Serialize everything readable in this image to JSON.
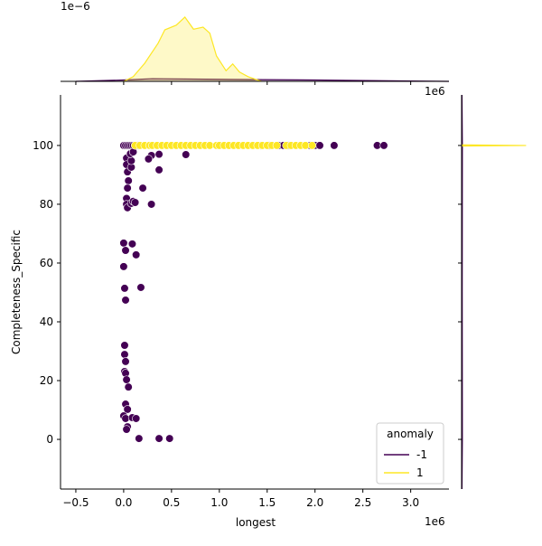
{
  "chart_data": {
    "type": "scatter",
    "xlabel": "longest",
    "ylabel": "Completeness_Specific",
    "x_offset_label": "1e6",
    "top_x_offset_label": "1e6",
    "top_y_offset_label": "1e−6",
    "xlim": [
      -0.66,
      3.4
    ],
    "ylim": [
      -16.9,
      117.2
    ],
    "xticks": [
      {
        "value": -0.5,
        "label": "−0.5"
      },
      {
        "value": 0.0,
        "label": "0.0"
      },
      0.5,
      {
        "value": 1.0,
        "label": "1.0"
      },
      1.5,
      {
        "value": 2.0,
        "label": "2.0"
      },
      2.5,
      {
        "value": 3.0,
        "label": "3.0"
      }
    ],
    "yticks": [
      0,
      20,
      40,
      60,
      80,
      100
    ],
    "legend_title": "anomaly",
    "legend_position": "lower right",
    "series": [
      {
        "name": "-1",
        "color": "#440154",
        "x": [
          0.0,
          0.02,
          0.04,
          0.06,
          0.08,
          0.1,
          0.12,
          0.15,
          1.44,
          1.52,
          1.62,
          1.67,
          1.72,
          1.95,
          2.0,
          2.05,
          2.2,
          2.65,
          2.72,
          0.03,
          0.03,
          0.04,
          0.05,
          0.04,
          0.03,
          0.03,
          0.04,
          0.08,
          0.1,
          0.08,
          0.08,
          0.07,
          0.1,
          0.37,
          0.37,
          0.29,
          0.26,
          0.65,
          0.2,
          0.29,
          0.12,
          0.09,
          0.0,
          0.13,
          0.02,
          0.0,
          0.01,
          0.18,
          0.02,
          0.01,
          0.01,
          0.02,
          0.01,
          0.02,
          0.03,
          0.05,
          0.02,
          0.04,
          0.0,
          0.02,
          0.09,
          0.13,
          0.04,
          0.03,
          0.16,
          0.37,
          0.48
        ],
        "values": [
          100,
          100,
          100,
          100,
          100,
          100,
          100,
          100,
          100,
          100,
          100,
          100,
          100,
          100,
          100,
          100,
          100,
          100,
          100,
          95.7,
          93.5,
          91,
          88,
          85.5,
          82,
          80,
          78.8,
          80.3,
          81,
          92.6,
          94.8,
          97.2,
          97.8,
          91.7,
          97,
          96.6,
          95.4,
          96.9,
          85.5,
          80,
          80.6,
          66.5,
          66.8,
          62.8,
          64.3,
          58.8,
          51.4,
          51.7,
          47.4,
          32,
          28.9,
          26.5,
          23.1,
          22.5,
          20.3,
          17.8,
          12,
          10.2,
          8,
          7.1,
          7.4,
          7.1,
          4.3,
          3.4,
          0.3,
          0.3,
          0.3
        ]
      },
      {
        "name": "1",
        "color": "#fde725",
        "x": [
          0.12,
          0.17,
          0.22,
          0.27,
          0.3,
          0.35,
          0.4,
          0.45,
          0.5,
          0.55,
          0.6,
          0.65,
          0.7,
          0.75,
          0.8,
          0.85,
          0.9,
          0.97,
          1.0,
          1.05,
          1.1,
          1.15,
          1.2,
          1.25,
          1.3,
          1.35,
          1.4,
          1.45,
          1.5,
          1.55,
          1.6,
          1.7,
          1.75,
          1.8,
          1.85,
          1.9,
          1.97
        ],
        "values": [
          100,
          100,
          100,
          100,
          100,
          100,
          100,
          100,
          100,
          100,
          100,
          100,
          100,
          100,
          100,
          100,
          100,
          100,
          100,
          100,
          100,
          100,
          100,
          100,
          100,
          100,
          100,
          100,
          100,
          100,
          100,
          100,
          100,
          100,
          100,
          100,
          100
        ]
      }
    ],
    "marginal_top": {
      "type": "kde",
      "ylim": [
        0,
        1.0
      ],
      "series": [
        {
          "color": "#440154",
          "x": [
            -0.5,
            0.0,
            0.3,
            1.0,
            2.0,
            3.0,
            3.4
          ],
          "values": [
            0,
            0.02,
            0.04,
            0.03,
            0.02,
            0.005,
            0
          ]
        },
        {
          "color": "#fde725",
          "x": [
            0.0,
            0.1,
            0.22,
            0.36,
            0.43,
            0.55,
            0.64,
            0.73,
            0.83,
            0.9,
            0.97,
            1.07,
            1.14,
            1.21,
            1.3,
            1.44
          ],
          "values": [
            0,
            0.07,
            0.27,
            0.57,
            0.77,
            0.84,
            0.96,
            0.78,
            0.81,
            0.72,
            0.38,
            0.16,
            0.26,
            0.14,
            0.07,
            0
          ]
        }
      ]
    },
    "marginal_right": {
      "type": "kde",
      "xlim": [
        0,
        1.0
      ],
      "series": [
        {
          "color": "#440154",
          "y": [
            -16.9,
            0,
            50,
            100,
            117.2
          ],
          "values": [
            0.005,
            0.01,
            0.008,
            0.01,
            0.005
          ]
        },
        {
          "color": "#fde725",
          "y": [
            99.8,
            100,
            100.2
          ],
          "values": [
            0,
            0.85,
            0
          ]
        }
      ]
    }
  }
}
